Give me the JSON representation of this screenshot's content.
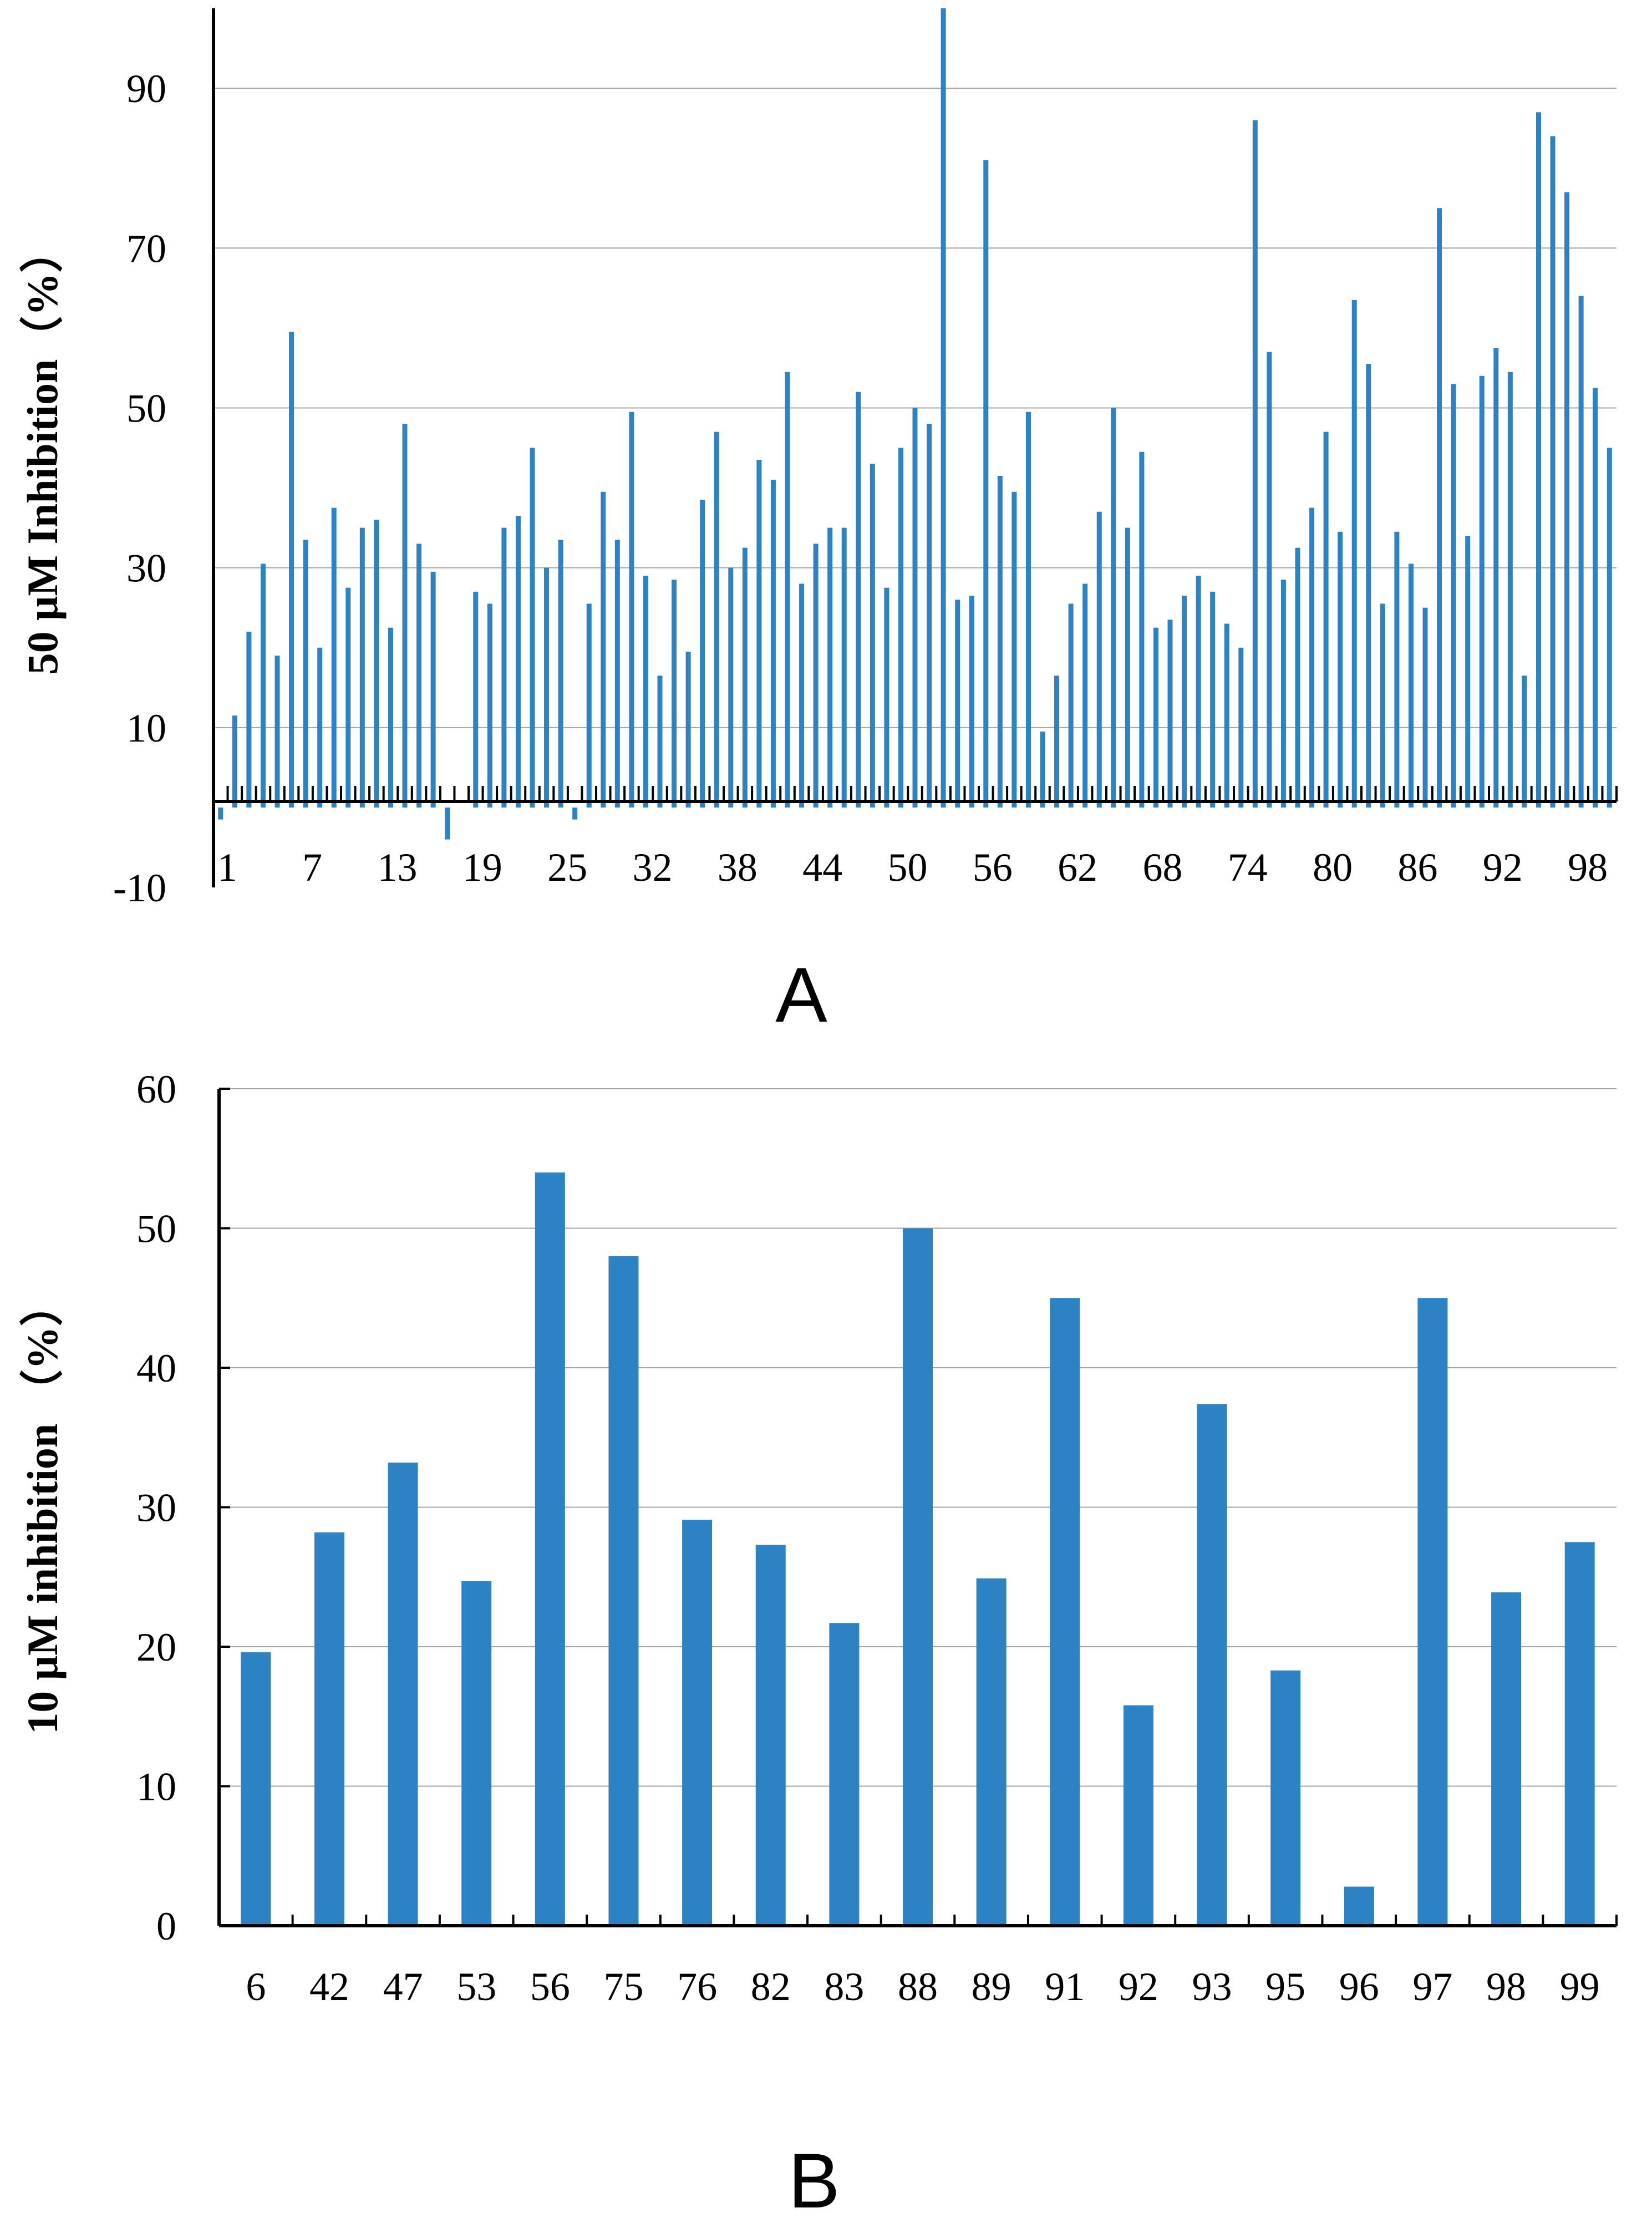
{
  "colors": {
    "bar": "#2C82C2",
    "axis": "#000000",
    "grid": "#A6A6A6"
  },
  "chart_data": [
    {
      "type": "bar",
      "panel_label": "A",
      "ylabel": "50 μM Inhibition（%）",
      "ylim": [
        -10,
        100
      ],
      "yticks": [
        -10,
        10,
        30,
        50,
        70,
        90
      ],
      "xtick_labels": [
        "1",
        "7",
        "13",
        "19",
        "25",
        "32",
        "38",
        "44",
        "50",
        "56",
        "62",
        "68",
        "74",
        "80",
        "86",
        "92",
        "98"
      ],
      "xtick_positions": [
        1,
        7,
        13,
        19,
        25,
        31,
        37,
        43,
        49,
        55,
        61,
        67,
        73,
        79,
        85,
        91,
        97
      ],
      "n_categories": 99,
      "values": [
        -1.5,
        11.5,
        22,
        30.5,
        19,
        59.5,
        33.5,
        20,
        37.5,
        27.5,
        35,
        36,
        22.5,
        48,
        33,
        29.5,
        -4,
        null,
        27,
        25.5,
        35,
        36.5,
        45,
        30,
        33.5,
        -1.5,
        25.5,
        39.5,
        33.5,
        49.5,
        29,
        16.5,
        28.5,
        19.5,
        38.5,
        47,
        30,
        32.5,
        43.5,
        41,
        54.5,
        28,
        33,
        35,
        35,
        52,
        43,
        27.5,
        45,
        50,
        48,
        100,
        26,
        26.5,
        81,
        41.5,
        39.5,
        49.5,
        9.5,
        16.5,
        25.5,
        28,
        37,
        50,
        35,
        44.5,
        22.5,
        23.5,
        26.5,
        29,
        27,
        23,
        20,
        86,
        57,
        28.5,
        32.5,
        37.5,
        47,
        34.5,
        63.5,
        55.5,
        25.5,
        34.5,
        30.5,
        25,
        75,
        53,
        34,
        54,
        57.5,
        54.5,
        16.5,
        87,
        84,
        77,
        64,
        52.5,
        45
      ]
    },
    {
      "type": "bar",
      "panel_label": "B",
      "ylabel": "10 μM inhibition （%）",
      "ylim": [
        0,
        60
      ],
      "yticks": [
        0,
        10,
        20,
        30,
        40,
        50,
        60
      ],
      "categories": [
        "6",
        "42",
        "47",
        "53",
        "56",
        "75",
        "76",
        "82",
        "83",
        "88",
        "89",
        "91",
        "92",
        "93",
        "95",
        "96",
        "97",
        "98",
        "99"
      ],
      "values": [
        19.6,
        28.2,
        33.2,
        24.7,
        54,
        48,
        29.1,
        27.3,
        21.7,
        50,
        24.9,
        45,
        15.8,
        37.4,
        18.3,
        2.8,
        45,
        23.9,
        27.5
      ]
    }
  ]
}
